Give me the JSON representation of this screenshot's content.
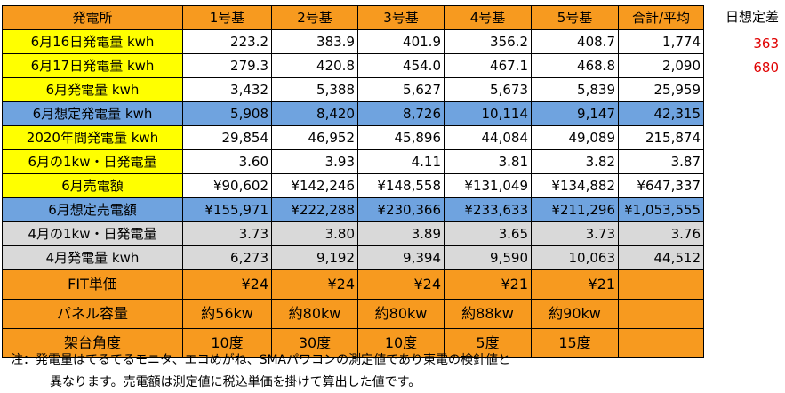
{
  "columns": [
    "発電所",
    "1号基",
    "2号基",
    "3号基",
    "4号基",
    "5号基",
    "合計/平均"
  ],
  "rows": [
    {
      "label": "6月16日発電量 kwh",
      "cells": [
        "223.2",
        "383.9",
        "401.9",
        "356.2",
        "408.7",
        "1,774"
      ],
      "style": "yellow"
    },
    {
      "label": "6月17日発電量 kwh",
      "cells": [
        "279.3",
        "420.8",
        "454.0",
        "467.1",
        "468.8",
        "2,090"
      ],
      "style": "yellow"
    },
    {
      "label": "6月発電量 kwh",
      "cells": [
        "3,432",
        "5,388",
        "5,627",
        "5,673",
        "5,839",
        "25,959"
      ],
      "style": "yellow"
    },
    {
      "label": "6月想定発電量 kwh",
      "cells": [
        "5,908",
        "8,420",
        "8,726",
        "10,114",
        "9,147",
        "42,315"
      ],
      "style": "blue"
    },
    {
      "label": "2020年間発電量 kwh",
      "cells": [
        "29,854",
        "46,952",
        "45,896",
        "44,084",
        "49,089",
        "215,874"
      ],
      "style": "yellow"
    },
    {
      "label": "6月の1kw・日発電量",
      "cells": [
        "3.60",
        "3.93",
        "4.11",
        "3.81",
        "3.82",
        "3.87"
      ],
      "style": "yellow"
    },
    {
      "label": "6月売電額",
      "cells": [
        "¥90,602",
        "¥142,246",
        "¥148,558",
        "¥131,049",
        "¥134,882",
        "¥647,337"
      ],
      "style": "yellow"
    },
    {
      "label": "6月想定売電額",
      "cells": [
        "¥155,971",
        "¥222,288",
        "¥230,366",
        "¥233,633",
        "¥211,296",
        "¥1,053,555"
      ],
      "style": "blue"
    },
    {
      "label": "4月の1kw・日発電量",
      "cells": [
        "3.73",
        "3.80",
        "3.89",
        "3.65",
        "3.73",
        "3.76"
      ],
      "style": "gray"
    },
    {
      "label": "4月発電量 kwh",
      "cells": [
        "6,273",
        "9,192",
        "9,394",
        "9,590",
        "10,063",
        "44,512"
      ],
      "style": "gray"
    },
    {
      "label": "FIT単価",
      "cells": [
        "¥24",
        "¥24",
        "¥24",
        "¥21",
        "¥21",
        ""
      ],
      "style": "orange",
      "align": "right"
    },
    {
      "label": "パネル容量",
      "cells": [
        "約56kw",
        "約80kw",
        "約80kw",
        "約88kw",
        "約90kw",
        ""
      ],
      "style": "orange",
      "align": "center"
    },
    {
      "label": "架台角度",
      "cells": [
        "10度",
        "30度",
        "10度",
        "5度",
        "15度",
        ""
      ],
      "style": "orange",
      "align": "center"
    }
  ],
  "side": {
    "header": "日想定差",
    "values": [
      "363",
      "680"
    ]
  },
  "notes": [
    "注：発電量はてるてるモニタ、エコめがね、SMAパワコンの測定値であり東電の検針値と",
    "異なります。売電額は測定値に税込単価を掛けて算出した値です。"
  ],
  "colors": {
    "header": "#F79A1F",
    "yellow": "#FFFF00",
    "blue": "#6FA3DF",
    "gray": "#D9D9D9",
    "red": "#E00000"
  }
}
